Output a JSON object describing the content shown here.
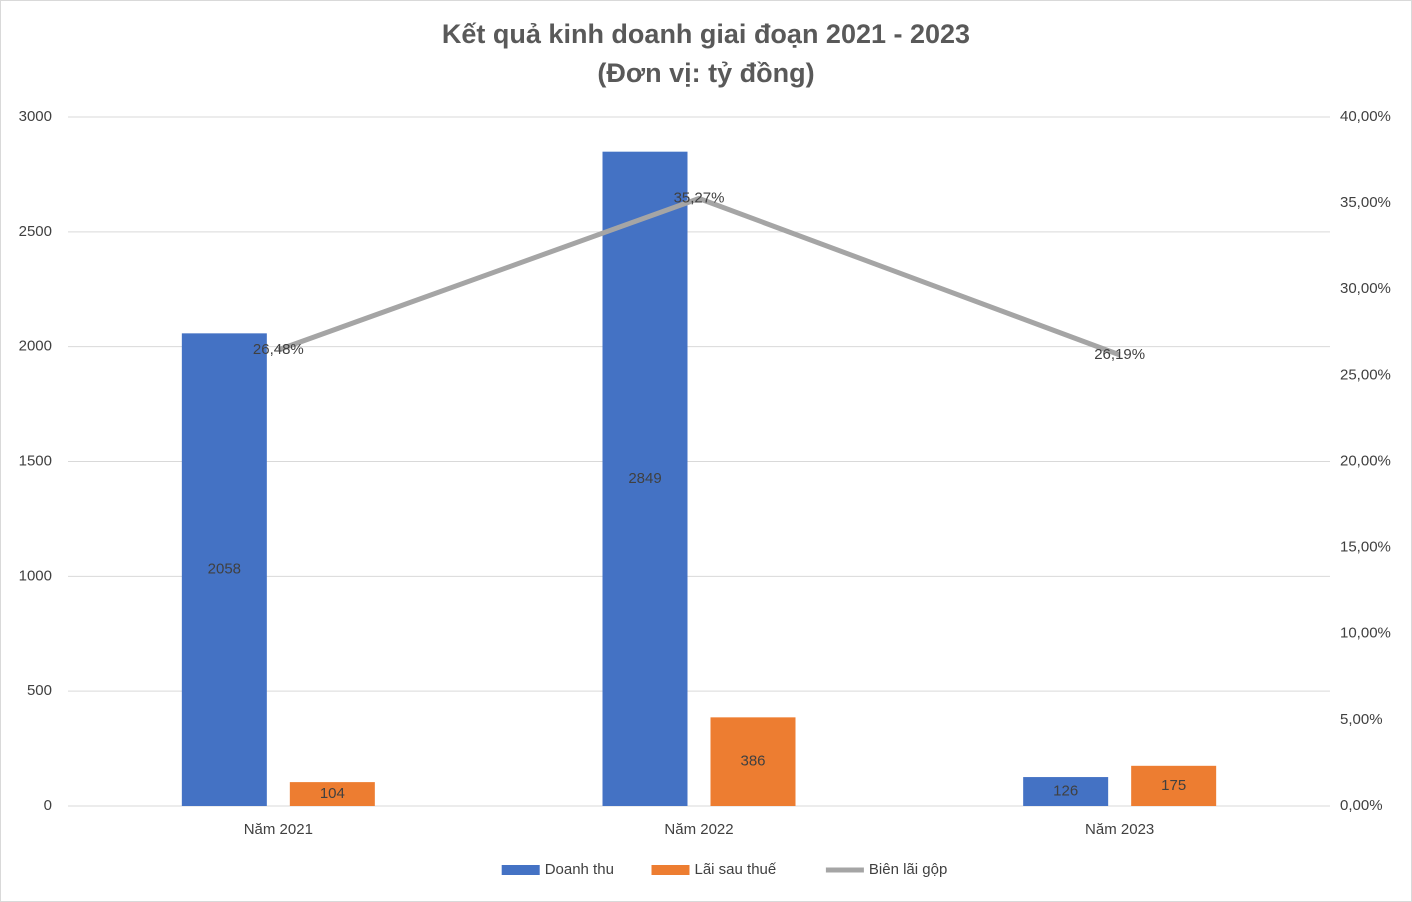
{
  "chart_data": {
    "type": "bar_line",
    "title": "Kết quả kinh doanh giai đoạn 2021 - 2023",
    "subtitle": "(Đơn vị: tỷ đồng)",
    "categories": [
      "Năm 2021",
      "Năm 2022",
      "Năm 2023"
    ],
    "series": [
      {
        "name": "Doanh thu",
        "type": "bar",
        "color": "#4472c4",
        "values": [
          2058,
          2849,
          126
        ]
      },
      {
        "name": "Lãi sau thuế",
        "type": "bar",
        "color": "#ed7d31",
        "values": [
          104,
          386,
          175
        ]
      },
      {
        "name": "Biên lãi gộp",
        "type": "line",
        "axis": "y2",
        "color": "#a5a5a5",
        "values": [
          26.48,
          35.27,
          26.19
        ],
        "value_labels": [
          "26,48%",
          "35,27%",
          "26,19%"
        ]
      }
    ],
    "ylim": [
      0,
      3000
    ],
    "yticks": [
      0,
      500,
      1000,
      1500,
      2000,
      2500,
      3000
    ],
    "y2lim": [
      0,
      40
    ],
    "y2ticks": [
      {
        "value": 0,
        "label": "0,00%"
      },
      {
        "value": 5,
        "label": "5,00%"
      },
      {
        "value": 10,
        "label": "10,00%"
      },
      {
        "value": 15,
        "label": "15,00%"
      },
      {
        "value": 20,
        "label": "20,00%"
      },
      {
        "value": 25,
        "label": "25,00%"
      },
      {
        "value": 30,
        "label": "30,00%"
      },
      {
        "value": 35,
        "label": "35,00%"
      },
      {
        "value": 40,
        "label": "40,00%"
      }
    ],
    "grid": true,
    "legend": "bottom"
  }
}
